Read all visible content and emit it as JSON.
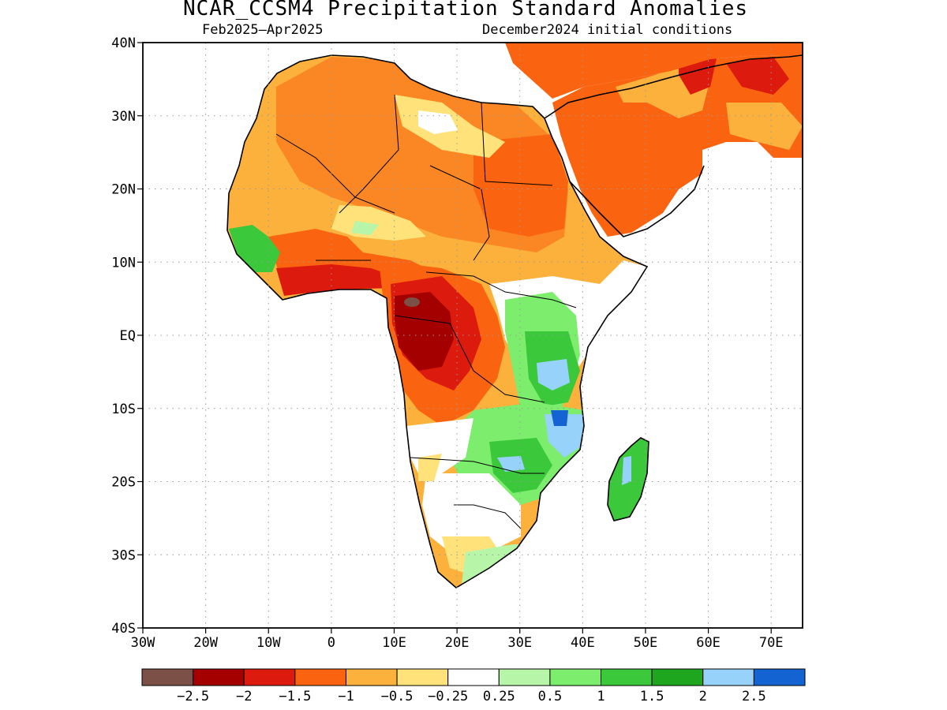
{
  "header": {
    "title": "NCAR_CCSM4 Precipitation Standard Anomalies",
    "period": "Feb2025–Apr2025",
    "initial_conditions": "December2024 initial conditions"
  },
  "map": {
    "lon_range": [
      -30,
      75
    ],
    "lat_range": [
      -40,
      40
    ],
    "lat_labels": [
      "40N",
      "30N",
      "20N",
      "10N",
      "EQ",
      "10S",
      "20S",
      "30S",
      "40S"
    ],
    "lon_labels": [
      "30W",
      "20W",
      "10W",
      "0",
      "10E",
      "20E",
      "30E",
      "40E",
      "50E",
      "60E",
      "70E"
    ],
    "grid": "dotted"
  },
  "legend": {
    "colors": [
      "#7b5147",
      "#a50000",
      "#dc1a0e",
      "#fa6410",
      "#fbb13c",
      "#ffe37a",
      "#ffffff",
      "#b7f6a8",
      "#7ced6c",
      "#3bc93b",
      "#1ea61e",
      "#96d2fa",
      "#1463d2"
    ],
    "labels": [
      "−2.5",
      "−2",
      "−1.5",
      "−1",
      "−0.5",
      "−0.25",
      "0.25",
      "0.5",
      "1",
      "1.5",
      "2",
      "2.5"
    ]
  }
}
